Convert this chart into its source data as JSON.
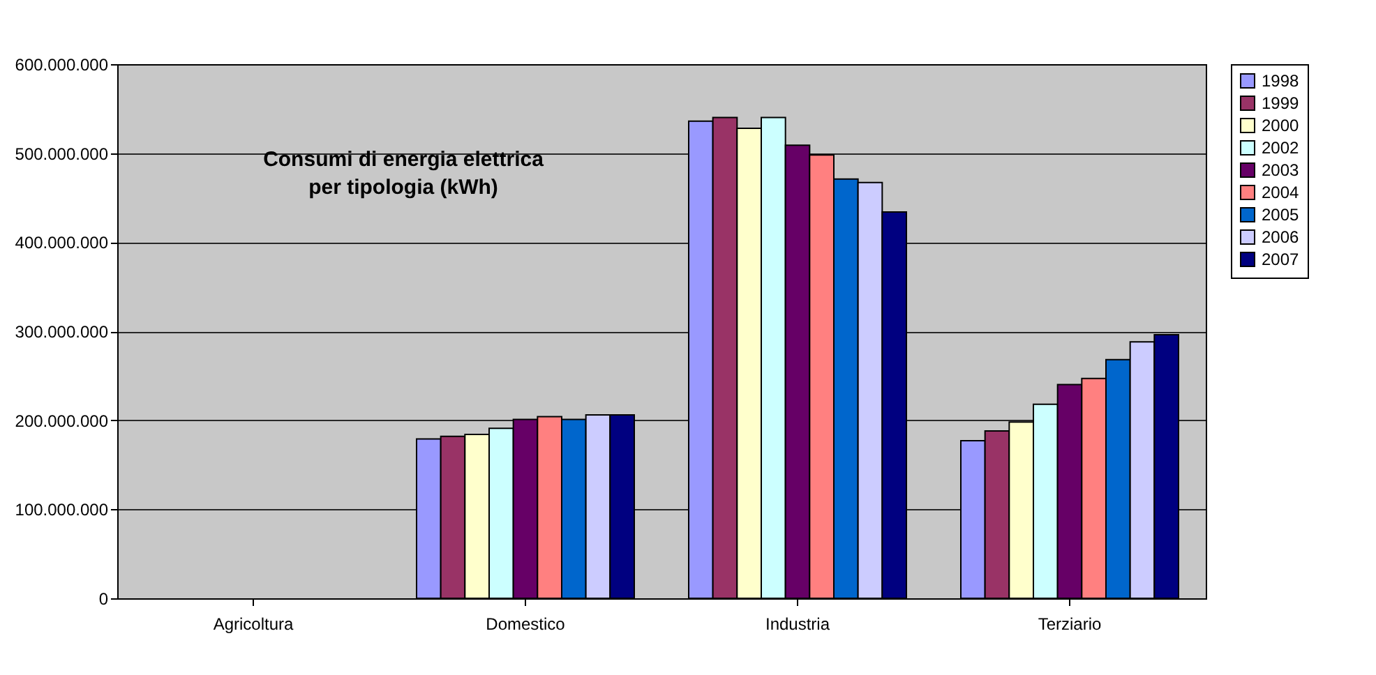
{
  "chart_data": {
    "type": "bar",
    "title": "Consumi di energia elettrica\nper tipologia (kWh)",
    "categories": [
      "Agricoltura",
      "Domestico",
      "Industria",
      "Terziario"
    ],
    "series": [
      {
        "name": "1998",
        "color": "#9999ff",
        "values": [
          null,
          179000000,
          536000000,
          177000000
        ]
      },
      {
        "name": "1999",
        "color": "#993366",
        "values": [
          null,
          182000000,
          540000000,
          188000000
        ]
      },
      {
        "name": "2000",
        "color": "#ffffcc",
        "values": [
          null,
          184000000,
          528000000,
          198000000
        ]
      },
      {
        "name": "2002",
        "color": "#ccffff",
        "values": [
          null,
          191000000,
          540000000,
          218000000
        ]
      },
      {
        "name": "2003",
        "color": "#660066",
        "values": [
          null,
          201000000,
          509000000,
          240000000
        ]
      },
      {
        "name": "2004",
        "color": "#ff8080",
        "values": [
          null,
          204000000,
          498000000,
          247000000
        ]
      },
      {
        "name": "2005",
        "color": "#0066cc",
        "values": [
          null,
          201000000,
          471000000,
          268000000
        ]
      },
      {
        "name": "2006",
        "color": "#ccccff",
        "values": [
          null,
          206000000,
          467000000,
          288000000
        ]
      },
      {
        "name": "2007",
        "color": "#000080",
        "values": [
          null,
          206000000,
          434000000,
          296000000
        ]
      }
    ],
    "ylim": [
      0,
      600000000
    ],
    "yticks": [
      0,
      {
        "value": 100000000,
        "label": "100.000.000"
      },
      {
        "value": 200000000,
        "label": "200.000.000"
      },
      {
        "value": 300000000,
        "label": "300.000.000"
      },
      {
        "value": 400000000,
        "label": "400.000.000"
      },
      {
        "value": 500000000,
        "label": "500.000.000"
      },
      {
        "value": 600000000,
        "label": "600.000.000"
      }
    ],
    "grid": "y",
    "legend": "right"
  }
}
